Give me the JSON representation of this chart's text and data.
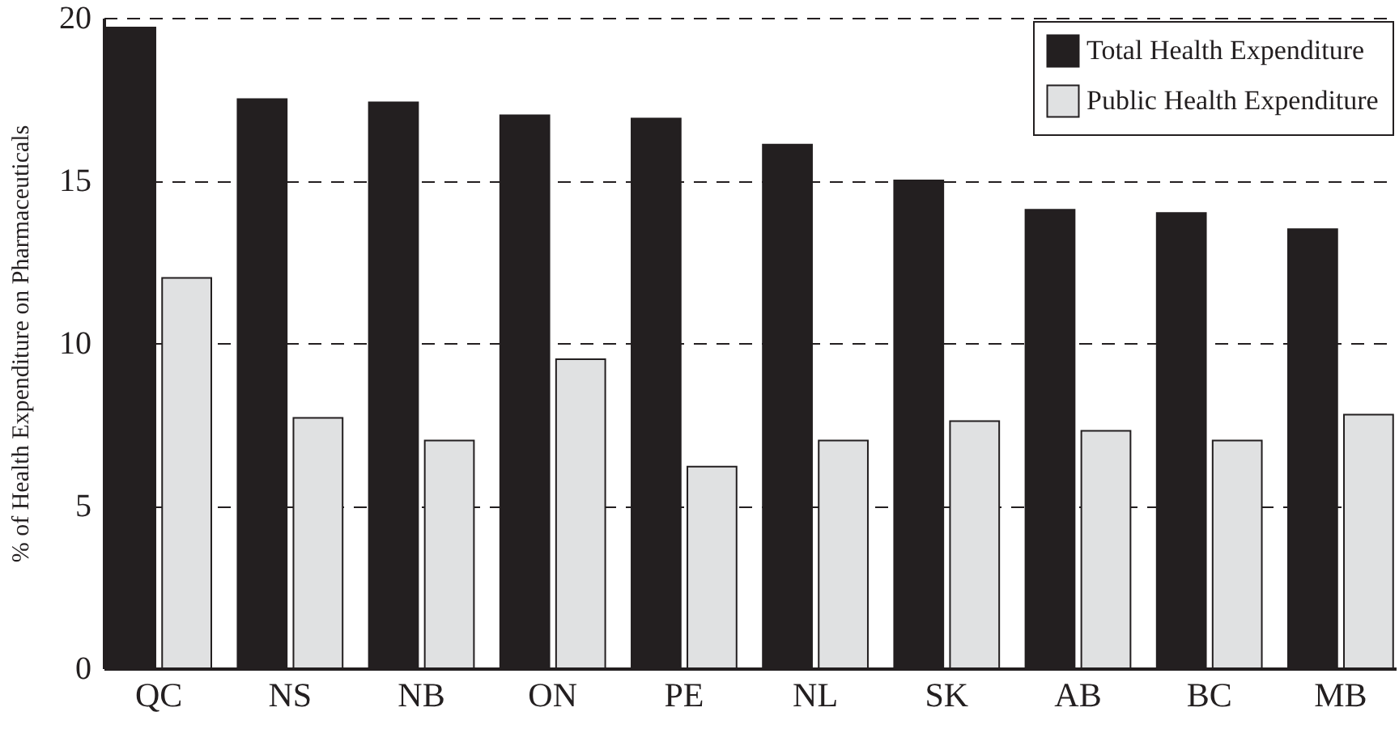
{
  "chart_data": {
    "type": "bar",
    "ylabel": "% of Health Expenditure on Pharmaceuticals",
    "categories": [
      "QC",
      "NS",
      "NB",
      "ON",
      "PE",
      "NL",
      "SK",
      "AB",
      "BC",
      "MB"
    ],
    "series": [
      {
        "name": "Total Health Expenditure",
        "color": "#231f20",
        "values": [
          19.7,
          17.5,
          17.4,
          17.0,
          16.9,
          16.1,
          15.0,
          14.1,
          14.0,
          13.5
        ]
      },
      {
        "name": "Public Health Expenditure",
        "color": "#e0e1e2",
        "values": [
          12.0,
          7.7,
          7.0,
          9.5,
          6.2,
          7.0,
          7.6,
          7.3,
          7.0,
          7.8
        ]
      }
    ],
    "ylim": [
      0,
      20
    ],
    "yticks": [
      0,
      5,
      10,
      15,
      20
    ],
    "grid": "y",
    "legend": "top right"
  }
}
